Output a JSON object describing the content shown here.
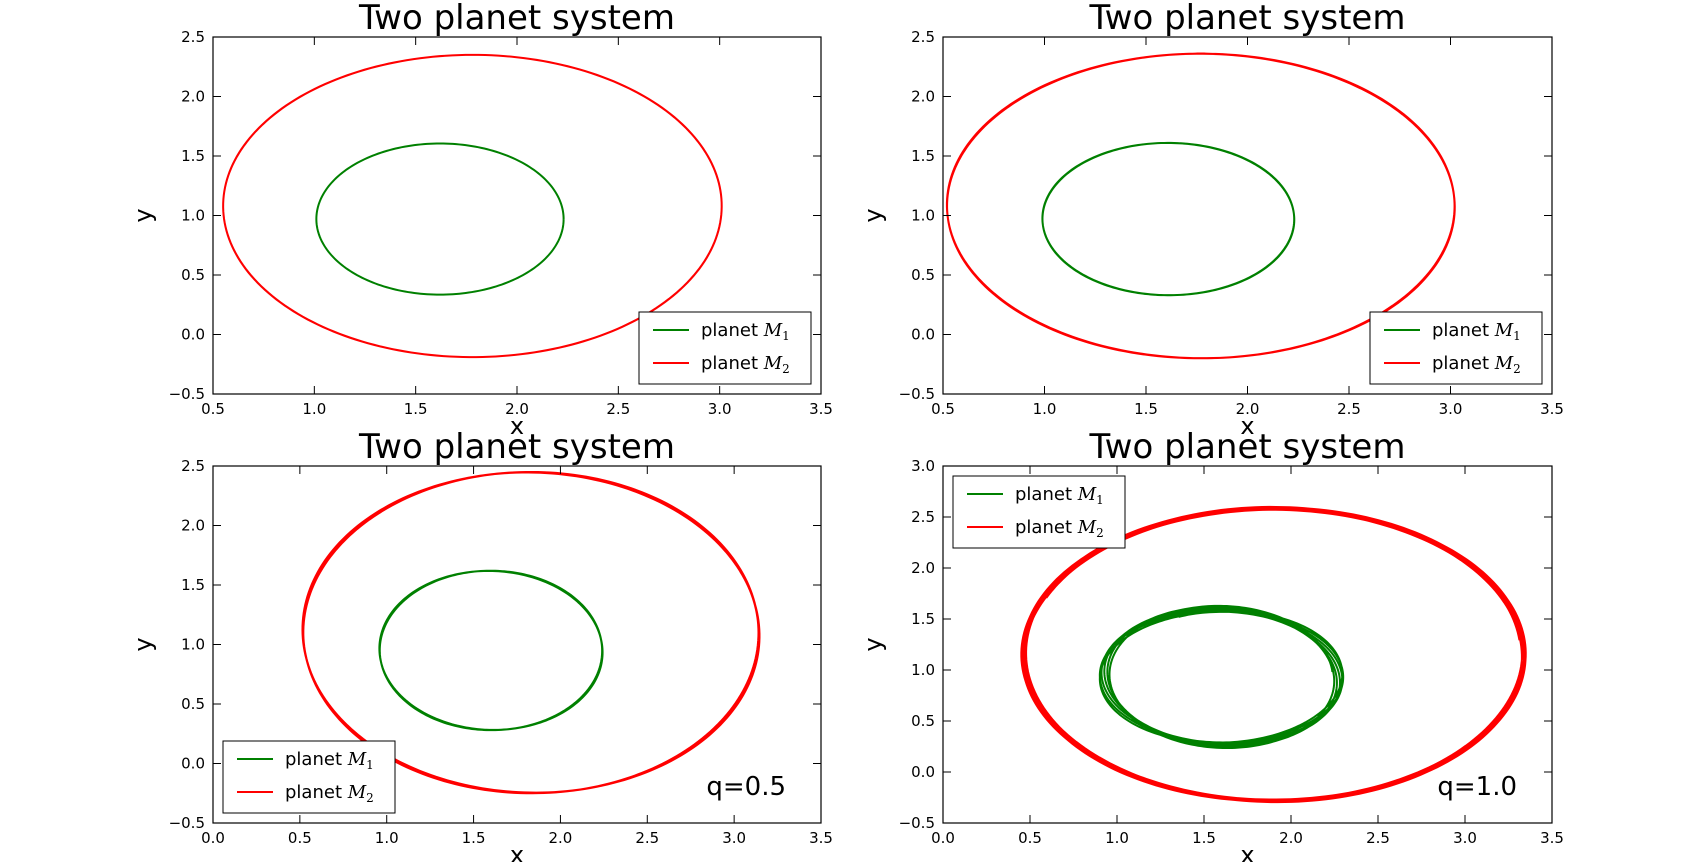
{
  "chart_data": [
    {
      "type": "line",
      "title": "Two planet system",
      "xlabel": "x",
      "ylabel": "y",
      "xlim": [
        0.5,
        3.5
      ],
      "ylim": [
        -0.5,
        2.5
      ],
      "xticks": [
        "0.5",
        "1.0",
        "1.5",
        "2.0",
        "2.5",
        "3.0",
        "3.5"
      ],
      "yticks": [
        "−0.5",
        "0.0",
        "0.5",
        "1.0",
        "1.5",
        "2.0",
        "2.5"
      ],
      "legend_position": "lower-right",
      "annotation": "",
      "series": [
        {
          "name": "planet",
          "math": "M",
          "sub": "1",
          "color": "#008000",
          "orbit": {
            "center": [
              1.62,
              0.97
            ],
            "a": 0.61,
            "b": 0.635,
            "turns": 1,
            "drift": 0.0,
            "tilt": 0.0
          }
        },
        {
          "name": "planet",
          "math": "M",
          "sub": "2",
          "color": "#ff0000",
          "orbit": {
            "center": [
              1.78,
              1.08
            ],
            "a": 1.23,
            "b": 1.27,
            "turns": 2,
            "drift": 0.004,
            "tilt": -0.03
          }
        }
      ]
    },
    {
      "type": "line",
      "title": "Two planet system",
      "xlabel": "x",
      "ylabel": "y",
      "xlim": [
        0.5,
        3.5
      ],
      "ylim": [
        -0.5,
        2.5
      ],
      "xticks": [
        "0.5",
        "1.0",
        "1.5",
        "2.0",
        "2.5",
        "3.0",
        "3.5"
      ],
      "yticks": [
        "−0.5",
        "0.0",
        "0.5",
        "1.0",
        "1.5",
        "2.0",
        "2.5"
      ],
      "legend_position": "lower-right",
      "annotation": "",
      "series": [
        {
          "name": "planet",
          "math": "M",
          "sub": "1",
          "color": "#008000",
          "orbit": {
            "center": [
              1.61,
              0.97
            ],
            "a": 0.62,
            "b": 0.64,
            "turns": 6,
            "drift": 0.004,
            "tilt": 0.0
          }
        },
        {
          "name": "planet",
          "math": "M",
          "sub": "2",
          "color": "#ff0000",
          "orbit": {
            "center": [
              1.77,
              1.08
            ],
            "a": 1.25,
            "b": 1.28,
            "turns": 6,
            "drift": 0.006,
            "tilt": -0.04
          }
        }
      ]
    },
    {
      "type": "line",
      "title": "Two planet system",
      "xlabel": "x",
      "ylabel": "y",
      "xlim": [
        0.0,
        3.5
      ],
      "ylim": [
        -0.5,
        2.5
      ],
      "xticks": [
        "0.0",
        "0.5",
        "1.0",
        "1.5",
        "2.0",
        "2.5",
        "3.0",
        "3.5"
      ],
      "yticks": [
        "−0.5",
        "0.0",
        "0.5",
        "1.0",
        "1.5",
        "2.0",
        "2.5"
      ],
      "legend_position": "lower-left",
      "annotation": "q=0.5",
      "series": [
        {
          "name": "planet",
          "math": "M",
          "sub": "1",
          "color": "#008000",
          "orbit": {
            "center": [
              1.6,
              0.95
            ],
            "a": 0.64,
            "b": 0.67,
            "turns": 6,
            "drift": 0.008,
            "tilt": 0.0
          }
        },
        {
          "name": "planet",
          "math": "M",
          "sub": "2",
          "color": "#ff0000",
          "orbit": {
            "center": [
              1.83,
              1.1
            ],
            "a": 1.31,
            "b": 1.35,
            "turns": 6,
            "drift": 0.012,
            "tilt": -0.05
          }
        }
      ]
    },
    {
      "type": "line",
      "title": "Two planet system",
      "xlabel": "x",
      "ylabel": "y",
      "xlim": [
        0.0,
        3.5
      ],
      "ylim": [
        -0.5,
        3.0
      ],
      "xticks": [
        "0.0",
        "0.5",
        "1.0",
        "1.5",
        "2.0",
        "2.5",
        "3.0",
        "3.5"
      ],
      "yticks": [
        "−0.5",
        "0.0",
        "0.5",
        "1.0",
        "1.5",
        "2.0",
        "2.5",
        "3.0"
      ],
      "legend_position": "upper-left",
      "annotation": "q=1.0",
      "series": [
        {
          "name": "planet",
          "math": "M",
          "sub": "1",
          "color": "#008000",
          "orbit": {
            "center": [
              1.6,
              0.93
            ],
            "a": 0.64,
            "b": 0.7,
            "turns": 6,
            "drift": 0.05,
            "tilt": 0.08
          }
        },
        {
          "name": "planet",
          "math": "M",
          "sub": "2",
          "color": "#ff0000",
          "orbit": {
            "center": [
              1.9,
              1.15
            ],
            "a": 1.42,
            "b": 1.45,
            "turns": 6,
            "drift": 0.07,
            "tilt": 0.1
          }
        }
      ]
    }
  ]
}
